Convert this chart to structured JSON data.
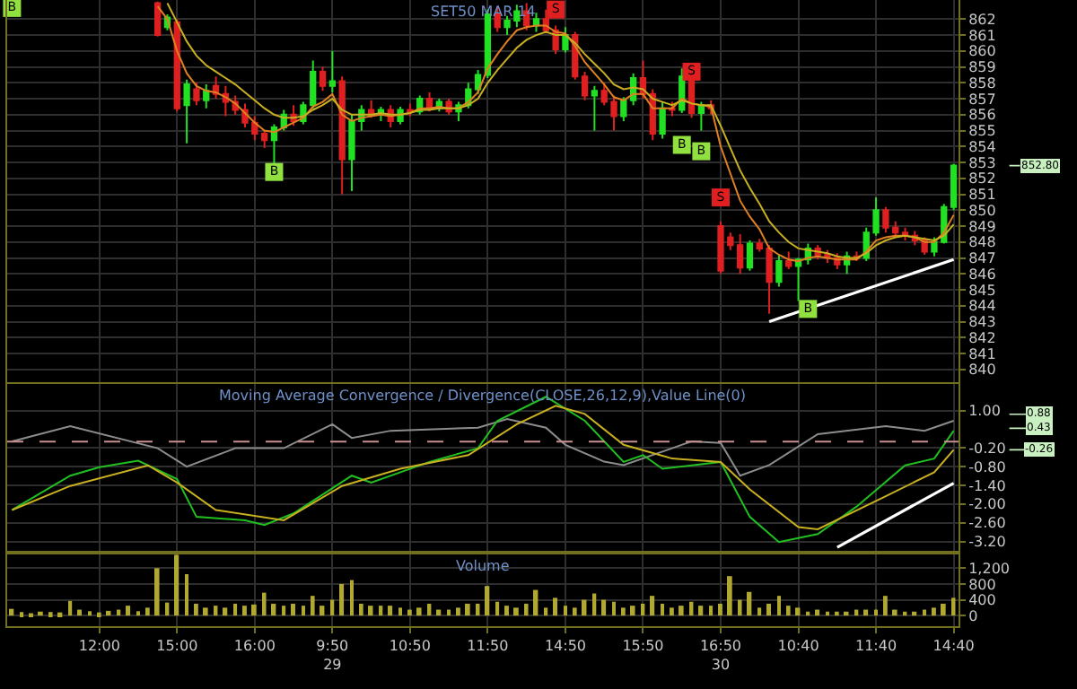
{
  "chart_data": [
    {
      "type": "candlestick",
      "title": "SET50 MAR 14",
      "grid": true,
      "tick_labels": "y",
      "categories": [
        null,
        null,
        null,
        null,
        null,
        null,
        null,
        null,
        null,
        "12:00",
        null,
        null,
        null,
        null,
        null,
        null,
        null,
        "15:00",
        null,
        null,
        null,
        null,
        null,
        null,
        null,
        "16:00",
        null,
        null,
        null,
        null,
        null,
        null,
        null,
        "9:50\n29",
        null,
        null,
        null,
        null,
        null,
        null,
        null,
        "10:50",
        null,
        null,
        null,
        null,
        null,
        null,
        null,
        "11:50",
        null,
        null,
        null,
        null,
        null,
        null,
        null,
        "14:50",
        null,
        null,
        null,
        null,
        null,
        null,
        null,
        "15:50",
        null,
        null,
        null,
        null,
        null,
        null,
        null,
        "16:50\n30",
        null,
        null,
        null,
        null,
        null,
        null,
        null,
        "10:40",
        null,
        null,
        null,
        null,
        null,
        null,
        null,
        "11:40",
        null,
        null,
        null,
        null,
        null,
        null,
        null,
        "14:40"
      ],
      "colors": [
        null,
        null,
        null,
        null,
        null,
        null,
        null,
        null,
        null,
        null,
        null,
        null,
        null,
        null,
        null,
        "#e02020",
        "#22e022",
        "#e02020",
        "#22e022",
        "#e02020",
        "#22e022",
        "#e02020",
        "#e02020",
        "#e02020",
        "#e02020",
        "#e02020",
        "#e02020",
        "#22e022",
        "#22e022",
        "#e02020",
        "#22e022",
        "#22e022",
        "#e02020",
        "#22e022",
        "#e02020",
        "#22e022",
        "#22e022",
        "#e02020",
        "#22e022",
        "#e02020",
        "#22e022",
        "#e02020",
        "#22e022",
        "#e02020",
        "#22e022",
        "#e02020",
        "#22e022",
        "#22e022",
        "#22e022",
        "#22e022",
        "#e02020",
        "#22e022",
        "#22e022",
        "#e02020",
        "#22e022",
        "#e02020",
        "#e02020",
        "#22e022",
        "#e02020",
        "#e02020",
        "#22e022",
        "#e02020",
        "#e02020",
        "#22e022",
        "#22e022",
        "#e02020",
        "#e02020",
        "#22e022",
        "#e02020",
        "#22e022",
        "#e02020",
        "#22e022",
        "#e02020",
        "#e02020",
        "#e02020",
        "#e02020",
        "#22e022",
        "#e02020",
        "#e02020",
        "#22e022",
        "#e02020",
        "#22e022",
        "#22e022",
        "#e02020",
        "#e02020",
        "#e02020",
        "#22e022",
        "#e02020",
        "#22e022",
        "#22e022",
        "#e02020",
        "#e02020",
        "#e02020",
        "#e02020",
        "#e02020",
        "#22e022",
        "#22e022",
        "#22e022"
      ],
      "ohlc": [
        null,
        null,
        null,
        null,
        null,
        null,
        null,
        null,
        null,
        null,
        null,
        null,
        null,
        null,
        null,
        [
          863.0,
          863.1,
          860.9,
          861.0
        ],
        [
          861.5,
          862.3,
          861.3,
          862.1
        ],
        [
          861.8,
          862.0,
          856.2,
          856.4
        ],
        [
          856.6,
          858.2,
          854.2,
          857.9
        ],
        [
          857.6,
          858.0,
          856.6,
          856.9
        ],
        [
          856.9,
          857.9,
          856.4,
          857.5
        ],
        [
          857.8,
          858.4,
          857.0,
          857.3
        ],
        [
          857.3,
          857.8,
          855.9,
          856.8
        ],
        [
          856.8,
          857.2,
          856.0,
          856.3
        ],
        [
          856.3,
          856.7,
          855.2,
          855.5
        ],
        [
          855.5,
          855.9,
          854.4,
          854.8
        ],
        [
          854.8,
          855.0,
          853.9,
          854.4
        ],
        [
          854.4,
          855.4,
          852.9,
          855.2
        ],
        [
          855.2,
          856.3,
          855.0,
          856.0
        ],
        [
          856.0,
          856.6,
          855.3,
          855.6
        ],
        [
          855.6,
          856.8,
          855.4,
          856.6
        ],
        [
          856.6,
          859.4,
          856.4,
          858.7
        ],
        [
          858.7,
          859.0,
          857.5,
          857.8
        ],
        [
          857.8,
          860.0,
          857.4,
          858.1
        ],
        [
          858.1,
          858.4,
          851.0,
          853.2
        ],
        [
          853.2,
          856.0,
          851.2,
          855.6
        ],
        [
          855.6,
          856.6,
          855.0,
          856.3
        ],
        [
          856.3,
          856.9,
          855.8,
          856.0
        ],
        [
          856.0,
          856.5,
          855.6,
          856.3
        ],
        [
          856.3,
          856.6,
          855.2,
          855.6
        ],
        [
          855.6,
          856.5,
          855.4,
          856.3
        ],
        [
          856.3,
          856.7,
          855.9,
          856.2
        ],
        [
          856.2,
          857.2,
          856.0,
          857.0
        ],
        [
          857.0,
          857.4,
          856.2,
          856.4
        ],
        [
          856.4,
          857.0,
          856.2,
          856.8
        ],
        [
          856.8,
          857.0,
          856.0,
          856.2
        ],
        [
          856.2,
          856.8,
          855.6,
          856.6
        ],
        [
          856.6,
          858.0,
          856.4,
          857.6
        ],
        [
          857.6,
          858.8,
          857.3,
          858.5
        ],
        [
          858.5,
          862.6,
          858.3,
          862.3
        ],
        [
          862.3,
          862.8,
          861.2,
          861.5
        ],
        [
          861.5,
          862.2,
          861.0,
          861.9
        ],
        [
          861.9,
          862.9,
          861.5,
          862.5
        ],
        [
          862.5,
          863.0,
          861.3,
          861.6
        ],
        [
          861.6,
          862.4,
          861.2,
          862.0
        ],
        [
          862.0,
          862.6,
          861.1,
          861.3
        ],
        [
          861.3,
          861.6,
          859.8,
          860.1
        ],
        [
          860.1,
          861.5,
          859.9,
          861.0
        ],
        [
          861.0,
          861.2,
          858.2,
          858.4
        ],
        [
          858.4,
          858.7,
          856.9,
          857.2
        ],
        [
          857.2,
          857.8,
          855.0,
          857.5
        ],
        [
          857.5,
          858.0,
          856.6,
          856.8
        ],
        [
          856.8,
          857.2,
          855.0,
          855.9
        ],
        [
          855.9,
          857.1,
          855.6,
          856.9
        ],
        [
          856.9,
          858.6,
          856.6,
          858.3
        ],
        [
          858.3,
          859.4,
          857.0,
          857.3
        ],
        [
          857.3,
          857.6,
          854.4,
          854.8
        ],
        [
          854.8,
          856.8,
          854.5,
          856.4
        ],
        [
          856.4,
          856.8,
          855.9,
          856.3
        ],
        [
          856.3,
          858.9,
          856.1,
          858.4
        ],
        [
          858.4,
          858.6,
          855.8,
          856.1
        ],
        [
          856.1,
          856.8,
          855.0,
          856.6
        ],
        [
          856.6,
          856.9,
          856.0,
          856.4
        ],
        [
          849.0,
          849.3,
          846.0,
          846.2
        ],
        [
          848.3,
          848.6,
          847.5,
          847.8
        ],
        [
          847.8,
          848.5,
          846.0,
          846.4
        ],
        [
          846.4,
          848.1,
          846.2,
          847.9
        ],
        [
          847.9,
          848.2,
          847.4,
          847.6
        ],
        [
          847.6,
          847.8,
          843.5,
          845.5
        ],
        [
          845.5,
          847.2,
          845.2,
          846.8
        ],
        [
          846.8,
          847.4,
          846.3,
          846.5
        ],
        [
          846.5,
          847.0,
          844.3,
          846.9
        ],
        [
          846.9,
          847.9,
          846.6,
          847.6
        ],
        [
          847.6,
          847.8,
          846.9,
          847.2
        ],
        [
          847.2,
          847.5,
          846.7,
          847.0
        ],
        [
          847.0,
          847.3,
          846.3,
          846.6
        ],
        [
          846.6,
          847.4,
          846.0,
          847.1
        ],
        [
          847.1,
          847.4,
          846.8,
          847.0
        ],
        [
          847.0,
          848.9,
          846.8,
          848.6
        ],
        [
          848.6,
          850.8,
          848.4,
          850.0
        ],
        [
          850.0,
          850.2,
          848.6,
          848.9
        ],
        [
          848.9,
          849.3,
          848.3,
          848.6
        ],
        [
          848.6,
          848.9,
          848.1,
          848.4
        ],
        [
          848.4,
          848.7,
          847.8,
          848.1
        ],
        [
          848.1,
          848.3,
          847.2,
          847.4
        ],
        [
          847.4,
          848.3,
          847.1,
          848.0
        ],
        [
          848.0,
          850.4,
          847.9,
          850.2
        ],
        [
          850.2,
          852.9,
          850.0,
          852.8
        ]
      ],
      "series": [
        {
          "type": "line",
          "color": "#e08020",
          "values": [
            null,
            null,
            null,
            null,
            null,
            null,
            null,
            null,
            null,
            null,
            null,
            null,
            null,
            null,
            null,
            862.8,
            862.0,
            860.0,
            858.6,
            857.8,
            857.5,
            857.4,
            857.1,
            856.7,
            856.1,
            855.5,
            855.0,
            854.9,
            855.2,
            855.5,
            855.8,
            856.5,
            856.8,
            857.3,
            856.0,
            855.6,
            855.8,
            855.9,
            856.0,
            855.9,
            856.0,
            856.1,
            856.4,
            856.4,
            856.5,
            856.4,
            856.4,
            856.8,
            857.4,
            858.9,
            859.8,
            860.6,
            861.3,
            861.5,
            861.6,
            861.6,
            861.2,
            861.1,
            860.3,
            859.3,
            858.6,
            857.9,
            857.1,
            856.9,
            857.3,
            857.3,
            856.4,
            856.4,
            856.4,
            857.0,
            856.7,
            856.6,
            856.5,
            854.0,
            852.3,
            850.6,
            849.6,
            848.8,
            847.6,
            847.2,
            846.9,
            846.8,
            847.0,
            847.1,
            847.0,
            846.9,
            846.9,
            846.9,
            847.4,
            848.1,
            848.3,
            848.4,
            848.4,
            848.3,
            848.0,
            848.0,
            848.6,
            849.7
          ]
        },
        {
          "type": "line",
          "color": "#c8b020",
          "values": [
            null,
            null,
            null,
            null,
            null,
            null,
            null,
            null,
            null,
            null,
            null,
            null,
            null,
            null,
            null,
            null,
            863.0,
            861.8,
            860.6,
            859.7,
            859.1,
            858.7,
            858.3,
            857.9,
            857.4,
            856.9,
            856.4,
            856.0,
            855.8,
            855.8,
            855.9,
            856.3,
            856.6,
            857.0,
            856.3,
            856.0,
            856.0,
            856.0,
            856.1,
            856.0,
            856.0,
            856.1,
            856.3,
            856.3,
            856.4,
            856.4,
            856.4,
            856.6,
            857.0,
            858.0,
            858.8,
            859.5,
            860.2,
            860.7,
            861.0,
            861.2,
            861.0,
            861.0,
            860.5,
            859.8,
            859.2,
            858.6,
            857.9,
            857.6,
            857.7,
            857.6,
            857.0,
            856.8,
            856.6,
            856.9,
            856.7,
            856.6,
            856.6,
            855.3,
            853.9,
            852.5,
            851.4,
            850.4,
            849.3,
            848.6,
            848.0,
            847.6,
            847.5,
            847.4,
            847.3,
            847.1,
            847.0,
            847.0,
            847.3,
            847.8,
            848.1,
            848.3,
            848.4,
            848.3,
            848.2,
            848.1,
            848.4,
            849.1
          ]
        },
        {
          "type": "line",
          "color": "#ffffff",
          "values": [
            null,
            null,
            null,
            null,
            null,
            null,
            null,
            null,
            null,
            null,
            null,
            null,
            null,
            null,
            null,
            null,
            null,
            null,
            null,
            null,
            null,
            null,
            null,
            null,
            null,
            null,
            null,
            null,
            null,
            null,
            null,
            null,
            null,
            null,
            null,
            null,
            null,
            null,
            null,
            null,
            null,
            null,
            null,
            null,
            null,
            null,
            null,
            null,
            null,
            null,
            null,
            null,
            null,
            null,
            null,
            null,
            null,
            null,
            null,
            null,
            null,
            null,
            null,
            null,
            null,
            null,
            null,
            null,
            null,
            null,
            null,
            null,
            null,
            null,
            null,
            null,
            null,
            null,
            843.0,
            null,
            null,
            null,
            null,
            null,
            null,
            null,
            null,
            null,
            null,
            null,
            null,
            null,
            null,
            null,
            null,
            null,
            null,
            846.9
          ]
        },
        {
          "type": "scatter",
          "marker": "square",
          "color": "#90e040",
          "values": [
            862.7,
            null,
            null,
            null,
            null,
            null,
            null,
            null,
            null,
            null,
            null,
            null,
            null,
            null,
            null,
            null,
            null,
            null,
            null,
            null,
            null,
            null,
            null,
            null,
            null,
            null,
            null,
            852.4,
            null,
            null,
            null,
            null,
            null,
            null,
            null,
            null,
            null,
            null,
            null,
            null,
            null,
            null,
            null,
            null,
            null,
            null,
            null,
            null,
            null,
            null,
            null,
            null,
            null,
            null,
            null,
            null,
            null,
            null,
            null,
            null,
            null,
            null,
            null,
            null,
            null,
            null,
            null,
            null,
            null,
            854.1,
            null,
            853.7,
            null,
            null,
            null,
            null,
            null,
            null,
            null,
            null,
            null,
            null,
            843.8,
            null,
            null,
            null,
            null,
            null,
            null,
            null,
            null,
            null,
            null,
            null,
            null,
            null,
            null,
            null
          ],
          "value_labels": [
            "B",
            null,
            null,
            null,
            null,
            null,
            null,
            null,
            null,
            null,
            null,
            null,
            null,
            null,
            null,
            null,
            null,
            null,
            null,
            null,
            null,
            null,
            null,
            null,
            null,
            null,
            null,
            "B",
            null,
            null,
            null,
            null,
            null,
            null,
            null,
            null,
            null,
            null,
            null,
            null,
            null,
            null,
            null,
            null,
            null,
            null,
            null,
            null,
            null,
            null,
            null,
            null,
            null,
            null,
            null,
            null,
            null,
            null,
            null,
            null,
            null,
            null,
            null,
            null,
            null,
            null,
            null,
            null,
            null,
            "B",
            null,
            "B",
            null,
            null,
            null,
            null,
            null,
            null,
            null,
            null,
            null,
            null,
            "B",
            null,
            null,
            null,
            null,
            null,
            null,
            null,
            null,
            null,
            null,
            null,
            null,
            null,
            null,
            null
          ]
        },
        {
          "type": "scatter",
          "marker": "square",
          "color": "#e02020",
          "values": [
            null,
            null,
            null,
            null,
            null,
            null,
            null,
            null,
            null,
            null,
            null,
            null,
            null,
            null,
            null,
            null,
            null,
            null,
            null,
            null,
            null,
            null,
            null,
            null,
            null,
            null,
            null,
            null,
            null,
            null,
            null,
            null,
            null,
            null,
            null,
            null,
            null,
            null,
            null,
            null,
            null,
            null,
            null,
            null,
            null,
            null,
            null,
            null,
            null,
            null,
            null,
            null,
            null,
            null,
            null,
            null,
            862.6,
            null,
            null,
            null,
            null,
            null,
            null,
            null,
            null,
            null,
            null,
            null,
            null,
            null,
            858.7,
            null,
            null,
            850.8,
            null,
            null,
            null,
            null,
            null,
            null,
            null,
            null,
            null,
            null,
            null,
            null,
            null,
            null,
            null,
            null,
            null,
            null,
            null,
            null,
            null,
            null,
            null,
            null
          ],
          "value_labels": [
            null,
            null,
            null,
            null,
            null,
            null,
            null,
            null,
            null,
            null,
            null,
            null,
            null,
            null,
            null,
            null,
            null,
            null,
            null,
            null,
            null,
            null,
            null,
            null,
            null,
            null,
            null,
            null,
            null,
            null,
            null,
            null,
            null,
            null,
            null,
            null,
            null,
            null,
            null,
            null,
            null,
            null,
            null,
            null,
            null,
            null,
            null,
            null,
            null,
            null,
            null,
            null,
            null,
            null,
            null,
            null,
            "S",
            null,
            null,
            null,
            null,
            null,
            null,
            null,
            null,
            null,
            null,
            null,
            null,
            null,
            "S",
            null,
            null,
            "S",
            null,
            null,
            null,
            null,
            null,
            null,
            null,
            null,
            null,
            null,
            null,
            null,
            null,
            null,
            null,
            null,
            null,
            null,
            null,
            null,
            null,
            null,
            null,
            null
          ]
        }
      ],
      "ylim": [
        839.2,
        863.2
      ],
      "yticks": [
        840,
        841,
        842,
        843,
        844,
        845,
        846,
        847,
        848,
        849,
        850,
        851,
        852,
        853,
        854,
        855,
        856,
        857,
        858,
        859,
        860,
        861,
        862
      ],
      "annotations": [
        {
          "text": "852.80",
          "x": "14:40",
          "y": 852.8
        }
      ]
    },
    {
      "type": "line",
      "title": "Moving Average Convergence / Divergence(CLOSE,26,12,9),Value Line(0)",
      "grid": true,
      "tick_labels": "y",
      "categories": [
        null,
        null,
        null,
        null,
        null,
        null,
        null,
        null,
        null,
        "12:00",
        null,
        null,
        null,
        null,
        null,
        null,
        null,
        "15:00",
        null,
        null,
        null,
        null,
        null,
        null,
        null,
        "16:00",
        null,
        null,
        null,
        null,
        null,
        null,
        null,
        "9:50\n29",
        null,
        null,
        null,
        null,
        null,
        null,
        null,
        "10:50",
        null,
        null,
        null,
        null,
        null,
        null,
        null,
        "11:50",
        null,
        null,
        null,
        null,
        null,
        null,
        null,
        "14:50",
        null,
        null,
        null,
        null,
        null,
        null,
        null,
        "15:50",
        null,
        null,
        null,
        null,
        null,
        null,
        null,
        "16:50\n30",
        null,
        null,
        null,
        null,
        null,
        null,
        null,
        "10:40",
        null,
        null,
        null,
        null,
        null,
        null,
        null,
        "11:40",
        null,
        null,
        null,
        null,
        null,
        null,
        null,
        "14:40"
      ],
      "series": [
        {
          "color": "#8c8c8c",
          "values": [
            0.01,
            null,
            null,
            null,
            null,
            null,
            0.5,
            null,
            null,
            null,
            null,
            null,
            null,
            null,
            null,
            -0.21,
            null,
            null,
            -0.8,
            null,
            null,
            null,
            null,
            -0.21,
            null,
            null,
            null,
            null,
            -0.21,
            null,
            null,
            null,
            null,
            0.56,
            null,
            0.12,
            null,
            null,
            null,
            0.35,
            null,
            null,
            null,
            null,
            null,
            null,
            null,
            null,
            0.45,
            null,
            null,
            0.73,
            null,
            null,
            null,
            0.45,
            null,
            -0.1,
            null,
            null,
            null,
            -0.64,
            null,
            -0.75,
            null,
            null,
            null,
            null,
            -0.21,
            null,
            0.01,
            null,
            null,
            -0.04,
            null,
            -1.09,
            null,
            null,
            -0.75,
            null,
            null,
            null,
            null,
            0.24,
            null,
            null,
            null,
            null,
            null,
            null,
            0.5,
            null,
            null,
            null,
            0.35,
            null,
            null,
            0.67
          ]
        },
        {
          "color": "#20c020",
          "values": [
            -2.19,
            null,
            null,
            null,
            null,
            null,
            -1.09,
            null,
            null,
            -0.82,
            null,
            null,
            null,
            -0.61,
            null,
            null,
            null,
            -1.2,
            null,
            -2.41,
            null,
            null,
            null,
            null,
            -2.52,
            null,
            -2.67,
            null,
            null,
            -2.3,
            null,
            null,
            null,
            null,
            null,
            -1.09,
            null,
            -1.31,
            null,
            null,
            null,
            null,
            null,
            -0.65,
            null,
            null,
            null,
            null,
            -0.21,
            null,
            0.67,
            null,
            null,
            null,
            null,
            1.44,
            null,
            null,
            null,
            0.67,
            null,
            null,
            null,
            -0.65,
            null,
            -0.43,
            null,
            -0.87,
            null,
            null,
            null,
            null,
            null,
            -0.65,
            null,
            null,
            -2.41,
            null,
            null,
            -3.22,
            null,
            null,
            null,
            -2.96,
            null,
            null,
            null,
            -2.08,
            null,
            null,
            null,
            null,
            -0.76,
            null,
            null,
            -0.54,
            null,
            0.35
          ]
        },
        {
          "color": "#c8b020",
          "values": [
            -2.19,
            null,
            null,
            null,
            null,
            null,
            -1.42,
            null,
            null,
            null,
            null,
            null,
            null,
            null,
            -0.76,
            null,
            null,
            -1.31,
            null,
            null,
            null,
            -2.19,
            null,
            null,
            null,
            null,
            null,
            null,
            -2.52,
            null,
            null,
            null,
            null,
            null,
            -1.42,
            null,
            null,
            null,
            null,
            null,
            -0.87,
            null,
            null,
            null,
            null,
            null,
            null,
            -0.43,
            null,
            null,
            null,
            null,
            0.56,
            null,
            null,
            null,
            1.15,
            null,
            null,
            0.89,
            null,
            null,
            null,
            -0.1,
            null,
            null,
            null,
            null,
            -0.54,
            null,
            null,
            null,
            null,
            -0.65,
            null,
            null,
            -1.53,
            null,
            null,
            null,
            null,
            -2.74,
            null,
            -2.81,
            null,
            null,
            null,
            null,
            null,
            null,
            -1.75,
            null,
            null,
            null,
            null,
            -0.98,
            null,
            -0.26
          ]
        },
        {
          "color": "#ffffff",
          "values": [
            null,
            null,
            null,
            null,
            null,
            null,
            null,
            null,
            null,
            null,
            null,
            null,
            null,
            null,
            null,
            null,
            null,
            null,
            null,
            null,
            null,
            null,
            null,
            null,
            null,
            null,
            null,
            null,
            null,
            null,
            null,
            null,
            null,
            null,
            null,
            null,
            null,
            null,
            null,
            null,
            null,
            null,
            null,
            null,
            null,
            null,
            null,
            null,
            null,
            null,
            null,
            null,
            null,
            null,
            null,
            null,
            null,
            null,
            null,
            null,
            null,
            null,
            null,
            null,
            null,
            null,
            null,
            null,
            null,
            null,
            null,
            null,
            null,
            null,
            null,
            null,
            null,
            null,
            null,
            null,
            null,
            null,
            null,
            null,
            null,
            -3.39,
            null,
            null,
            null,
            null,
            null,
            null,
            null,
            null,
            null,
            null,
            null,
            -1.33
          ]
        }
      ],
      "ylim": [
        -3.5,
        1.85
      ],
      "yticks": [
        {
          "value": 1,
          "label": "1.00"
        },
        {
          "value": -0.2,
          "label": "-0.20"
        },
        {
          "value": -0.8,
          "label": "-0.80"
        },
        {
          "value": -1.4,
          "label": "-1.40"
        },
        {
          "value": -2,
          "label": "-2.00"
        },
        {
          "value": -2.6,
          "label": "-2.60"
        },
        {
          "value": -3.2,
          "label": "-3.20"
        }
      ],
      "ref_lines": [
        {
          "axis": "y",
          "value": 0,
          "color": "#c89090",
          "line_style": "dashed"
        }
      ],
      "annotations": [
        {
          "text": "0.88",
          "x": "14:40",
          "y": 0.88
        },
        {
          "text": "0.43",
          "x": "14:40",
          "y": 0.43
        },
        {
          "text": "-0.26",
          "x": "14:40",
          "y": -0.26
        }
      ]
    },
    {
      "type": "bar",
      "title": "Volume",
      "grid": true,
      "color": "#b0a830",
      "categories": [
        null,
        null,
        null,
        null,
        null,
        null,
        null,
        null,
        null,
        "12:00",
        null,
        null,
        null,
        null,
        null,
        null,
        null,
        "15:00",
        null,
        null,
        null,
        null,
        null,
        null,
        null,
        "16:00",
        null,
        null,
        null,
        null,
        null,
        null,
        null,
        "9:50\n29",
        null,
        null,
        null,
        null,
        null,
        null,
        null,
        "10:50",
        null,
        null,
        null,
        null,
        null,
        null,
        null,
        "11:50",
        null,
        null,
        null,
        null,
        null,
        null,
        null,
        "14:50",
        null,
        null,
        null,
        null,
        null,
        null,
        null,
        "15:50",
        null,
        null,
        null,
        null,
        null,
        null,
        null,
        "16:50\n30",
        null,
        null,
        null,
        null,
        null,
        null,
        null,
        "10:40",
        null,
        null,
        null,
        null,
        null,
        null,
        null,
        "11:40",
        null,
        null,
        null,
        null,
        null,
        null,
        null,
        "14:40"
      ],
      "values": [
        170,
        90,
        60,
        100,
        90,
        80,
        370,
        150,
        110,
        80,
        120,
        150,
        250,
        110,
        200,
        1200,
        330,
        1540,
        1050,
        300,
        200,
        250,
        200,
        300,
        250,
        280,
        580,
        300,
        250,
        300,
        250,
        500,
        250,
        400,
        800,
        900,
        300,
        250,
        250,
        250,
        200,
        150,
        200,
        300,
        150,
        150,
        200,
        300,
        300,
        750,
        350,
        250,
        200,
        300,
        650,
        200,
        450,
        250,
        200,
        400,
        560,
        400,
        350,
        200,
        250,
        300,
        500,
        300,
        200,
        250,
        350,
        250,
        250,
        300,
        1000,
        400,
        600,
        200,
        300,
        500,
        250,
        200,
        100,
        150,
        100,
        100,
        100,
        150,
        150,
        150,
        500,
        150,
        100,
        100,
        150,
        200,
        300,
        450
      ],
      "ylim": [
        -270,
        1550
      ],
      "yticks": [
        0,
        400,
        800,
        {
          "value": 1200,
          "label": "1,200"
        }
      ]
    }
  ]
}
